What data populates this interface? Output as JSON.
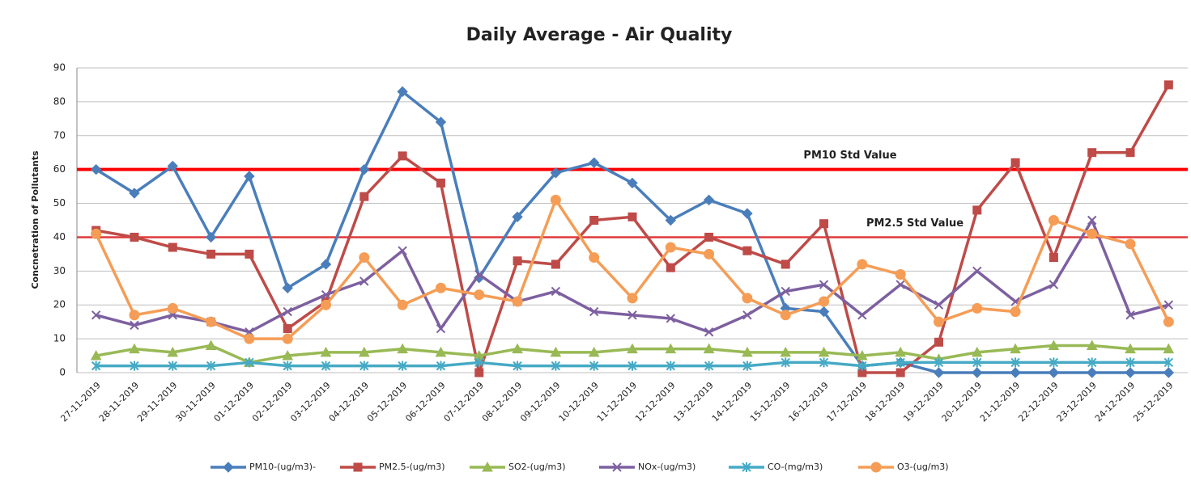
{
  "chart_data": {
    "type": "line",
    "title": "Daily Average - Air Quality",
    "y_label": "Concnetration of Pollutants",
    "categories": [
      "27-11-2019",
      "28-11-2019",
      "29-11-2019",
      "30-11-2019",
      "01-12-2019",
      "02-12-2019",
      "03-12-2019",
      "04-12-2019",
      "05-12-2019",
      "06-12-2019",
      "07-12-2019",
      "08-12-2019",
      "09-12-2019",
      "10-12-2019",
      "11-12-2019",
      "12-12-2019",
      "13-12-2019",
      "14-12-2019",
      "15-12-2019",
      "16-12-2019",
      "17-12-2019",
      "18-12-2019",
      "19-12-2019",
      "20-12-2019",
      "21-12-2019",
      "22-12-2019",
      "23-12-2019",
      "24-12-2019",
      "25-12-2019"
    ],
    "series": [
      {
        "name": "PM10-(ug/m3)-",
        "color": "#4a7ebb",
        "marker": "diamond",
        "values": [
          60,
          53,
          61,
          40,
          58,
          25,
          32,
          60,
          83,
          74,
          28,
          46,
          59,
          62,
          56,
          45,
          51,
          47,
          19,
          18,
          2,
          3,
          0,
          0,
          0,
          0,
          0,
          0,
          0
        ]
      },
      {
        "name": "PM2.5-(ug/m3)",
        "color": "#be4b48",
        "marker": "square",
        "values": [
          42,
          40,
          37,
          35,
          35,
          13,
          21,
          52,
          64,
          56,
          0,
          33,
          32,
          45,
          46,
          31,
          40,
          36,
          32,
          44,
          0,
          0,
          9,
          48,
          62,
          34,
          65,
          65,
          85
        ]
      },
      {
        "name": "SO2-(ug/m3)",
        "color": "#98b954",
        "marker": "triangle",
        "values": [
          5,
          7,
          6,
          8,
          3,
          5,
          6,
          6,
          7,
          6,
          5,
          7,
          6,
          6,
          7,
          7,
          7,
          6,
          6,
          6,
          5,
          6,
          4,
          6,
          7,
          8,
          8,
          7,
          7
        ]
      },
      {
        "name": "NOx-(ug/m3)",
        "color": "#7d60a0",
        "marker": "x",
        "values": [
          17,
          14,
          17,
          15,
          12,
          18,
          23,
          27,
          36,
          13,
          29,
          21,
          24,
          18,
          17,
          16,
          12,
          17,
          24,
          26,
          17,
          26,
          20,
          30,
          21,
          26,
          45,
          17,
          20
        ]
      },
      {
        "name": "CO-(mg/m3)",
        "color": "#46aac5",
        "marker": "star",
        "values": [
          2,
          2,
          2,
          2,
          3,
          2,
          2,
          2,
          2,
          2,
          3,
          2,
          2,
          2,
          2,
          2,
          2,
          2,
          3,
          3,
          2,
          3,
          3,
          3,
          3,
          3,
          3,
          3,
          3
        ]
      },
      {
        "name": "O3-(ug/m3)",
        "color": "#f59d56",
        "marker": "circle",
        "values": [
          41,
          17,
          19,
          15,
          10,
          10,
          20,
          34,
          20,
          25,
          23,
          21,
          51,
          34,
          22,
          37,
          35,
          22,
          17,
          21,
          32,
          29,
          15,
          19,
          18,
          45,
          41,
          38,
          15
        ]
      }
    ],
    "reference_lines": [
      {
        "label": "PM10 Std Value",
        "value": 60,
        "color": "#ff0000"
      },
      {
        "label": "PM2.5 Std Value",
        "value": 40,
        "color": "#e03a3a"
      }
    ],
    "ylim": [
      0,
      90
    ],
    "yticks": [
      0,
      10,
      20,
      30,
      40,
      50,
      60,
      70,
      80,
      90
    ],
    "grid": true,
    "legend": "bottom"
  }
}
